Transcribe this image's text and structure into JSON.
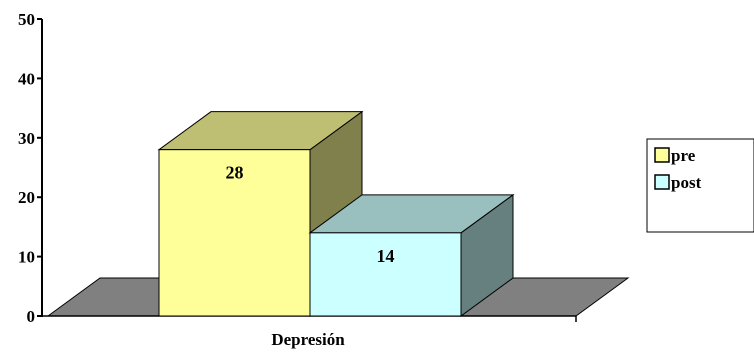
{
  "chart_data": {
    "type": "bar",
    "style": "3d",
    "categories": [
      "Depresión"
    ],
    "series": [
      {
        "name": "pre",
        "values": [
          28
        ],
        "color": "#FFFF99"
      },
      {
        "name": "post",
        "values": [
          14
        ],
        "color": "#CCFFFF"
      }
    ],
    "data_labels": [
      "28",
      "14"
    ],
    "ylim": [
      0,
      50
    ],
    "yticks": [
      "0",
      "10",
      "20",
      "30",
      "40",
      "50"
    ],
    "grid": false,
    "legend_position": "right",
    "floor_color": "#808080"
  }
}
